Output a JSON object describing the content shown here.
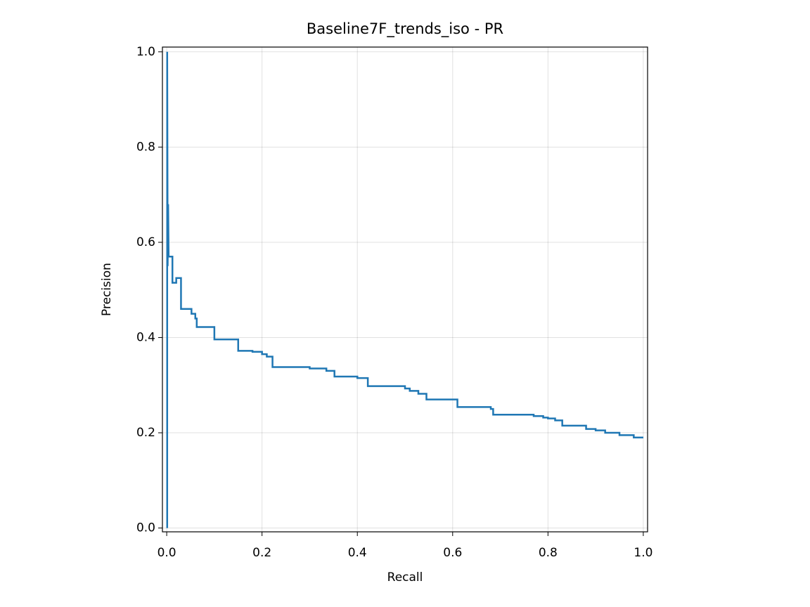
{
  "chart_data": {
    "type": "line",
    "title": "Baseline7F_trends_iso - PR",
    "x_label": "Recall",
    "y_label": "Precision",
    "series": [
      {
        "color": "#1f77b4",
        "x": [
          0.001,
          0.001,
          0.002,
          0.003,
          0.004,
          0.012,
          0.012,
          0.02,
          0.02,
          0.03,
          0.03,
          0.052,
          0.052,
          0.06,
          0.06,
          0.063,
          0.063,
          0.1,
          0.1,
          0.15,
          0.15,
          0.18,
          0.18,
          0.2,
          0.2,
          0.21,
          0.21,
          0.222,
          0.222,
          0.3,
          0.3,
          0.335,
          0.335,
          0.352,
          0.352,
          0.4,
          0.4,
          0.422,
          0.422,
          0.5,
          0.5,
          0.51,
          0.51,
          0.528,
          0.528,
          0.545,
          0.545,
          0.61,
          0.61,
          0.68,
          0.68,
          0.685,
          0.685,
          0.77,
          0.77,
          0.79,
          0.79,
          0.8,
          0.8,
          0.815,
          0.815,
          0.83,
          0.83,
          0.88,
          0.88,
          0.9,
          0.9,
          0.92,
          0.92,
          0.95,
          0.95,
          0.98,
          0.98,
          1.0
        ],
        "values": [
          0.0,
          1.0,
          0.55,
          0.68,
          0.57,
          0.57,
          0.515,
          0.515,
          0.525,
          0.525,
          0.46,
          0.46,
          0.45,
          0.45,
          0.44,
          0.44,
          0.422,
          0.422,
          0.396,
          0.396,
          0.372,
          0.372,
          0.37,
          0.37,
          0.365,
          0.365,
          0.36,
          0.36,
          0.338,
          0.338,
          0.335,
          0.335,
          0.33,
          0.33,
          0.318,
          0.318,
          0.315,
          0.315,
          0.298,
          0.298,
          0.293,
          0.293,
          0.288,
          0.288,
          0.282,
          0.282,
          0.27,
          0.27,
          0.254,
          0.254,
          0.25,
          0.25,
          0.238,
          0.238,
          0.235,
          0.235,
          0.232,
          0.232,
          0.23,
          0.23,
          0.226,
          0.226,
          0.215,
          0.215,
          0.208,
          0.208,
          0.205,
          0.205,
          0.2,
          0.2,
          0.195,
          0.195,
          0.19,
          0.19
        ]
      }
    ],
    "xlim": [
      -0.009,
      1.009
    ],
    "ylim": [
      -0.008,
      1.01
    ],
    "xticks": [
      {
        "value": 0,
        "label": "0.0"
      },
      0.2,
      0.4,
      0.6,
      0.8,
      {
        "value": 1,
        "label": "1.0"
      }
    ],
    "yticks": [
      {
        "value": 0,
        "label": "0.0"
      },
      0.2,
      0.4,
      0.6,
      0.8,
      {
        "value": 1,
        "label": "1.0"
      }
    ],
    "grid": true
  }
}
